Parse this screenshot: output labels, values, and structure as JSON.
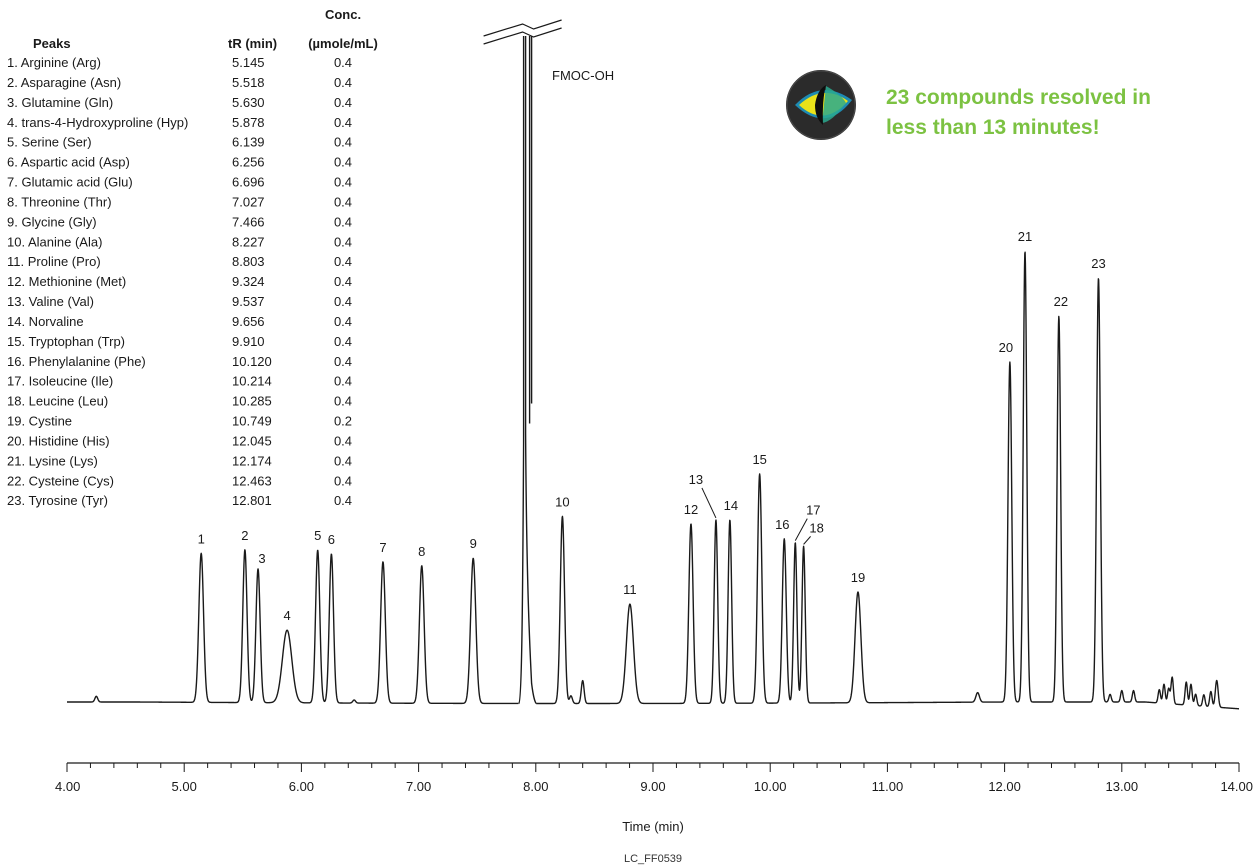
{
  "chart_data": {
    "type": "line",
    "xlabel": "Time (min)",
    "xlim": [
      4.0,
      14.0
    ],
    "x_ticks": [
      "4.00",
      "5.00",
      "6.00",
      "7.00",
      "8.00",
      "9.00",
      "10.00",
      "11.00",
      "12.00",
      "13.00",
      "14.00"
    ],
    "legend": {
      "headers": {
        "peaks": "Peaks",
        "tr": "tR (min)",
        "conc_line1": "Conc.",
        "conc_line2": "(µmole/mL)"
      },
      "rows": [
        {
          "label": "1. Arginine (Arg)",
          "tr": "5.145",
          "conc": "0.4"
        },
        {
          "label": "2. Asparagine (Asn)",
          "tr": "5.518",
          "conc": "0.4"
        },
        {
          "label": "3. Glutamine (Gln)",
          "tr": "5.630",
          "conc": "0.4"
        },
        {
          "label": "4. trans-4-Hydroxyproline (Hyp)",
          "tr": "5.878",
          "conc": "0.4"
        },
        {
          "label": "5. Serine (Ser)",
          "tr": "6.139",
          "conc": "0.4"
        },
        {
          "label": "6. Aspartic acid (Asp)",
          "tr": "6.256",
          "conc": "0.4"
        },
        {
          "label": "7. Glutamic acid (Glu)",
          "tr": "6.696",
          "conc": "0.4"
        },
        {
          "label": "8. Threonine (Thr)",
          "tr": "7.027",
          "conc": "0.4"
        },
        {
          "label": "9. Glycine (Gly)",
          "tr": "7.466",
          "conc": "0.4"
        },
        {
          "label": "10. Alanine (Ala)",
          "tr": "8.227",
          "conc": "0.4"
        },
        {
          "label": "11. Proline (Pro)",
          "tr": "8.803",
          "conc": "0.4"
        },
        {
          "label": "12. Methionine (Met)",
          "tr": "9.324",
          "conc": "0.4"
        },
        {
          "label": "13. Valine (Val)",
          "tr": "9.537",
          "conc": "0.4"
        },
        {
          "label": "14. Norvaline",
          "tr": "9.656",
          "conc": "0.4"
        },
        {
          "label": "15. Tryptophan (Trp)",
          "tr": "9.910",
          "conc": "0.4"
        },
        {
          "label": "16. Phenylalanine (Phe)",
          "tr": "10.120",
          "conc": "0.4"
        },
        {
          "label": "17. Isoleucine (Ile)",
          "tr": "10.214",
          "conc": "0.4"
        },
        {
          "label": "18. Leucine (Leu)",
          "tr": "10.285",
          "conc": "0.4"
        },
        {
          "label": "19. Cystine",
          "tr": "10.749",
          "conc": "0.2"
        },
        {
          "label": "20. Histidine (His)",
          "tr": "12.045",
          "conc": "0.4"
        },
        {
          "label": "21. Lysine (Lys)",
          "tr": "12.174",
          "conc": "0.4"
        },
        {
          "label": "22. Cysteine (Cys)",
          "tr": "12.463",
          "conc": "0.4"
        },
        {
          "label": "23. Tyrosine (Tyr)",
          "tr": "12.801",
          "conc": "0.4"
        }
      ]
    },
    "peaks": [
      {
        "label": "1",
        "t": 5.145,
        "h": 0.39,
        "w": 0.02
      },
      {
        "label": "2",
        "t": 5.518,
        "h": 0.4,
        "w": 0.018
      },
      {
        "label": "3",
        "t": 5.63,
        "h": 0.35,
        "w": 0.018
      },
      {
        "label": "4",
        "t": 5.878,
        "h": 0.19,
        "w": 0.04
      },
      {
        "label": "5",
        "t": 6.139,
        "h": 0.4,
        "w": 0.018
      },
      {
        "label": "6",
        "t": 6.256,
        "h": 0.39,
        "w": 0.018
      },
      {
        "label": "7",
        "t": 6.696,
        "h": 0.37,
        "w": 0.02
      },
      {
        "label": "8",
        "t": 7.027,
        "h": 0.36,
        "w": 0.02
      },
      {
        "label": "9",
        "t": 7.466,
        "h": 0.38,
        "w": 0.022
      },
      {
        "label": "10",
        "t": 8.227,
        "h": 0.49,
        "w": 0.018
      },
      {
        "label": "11",
        "t": 8.803,
        "h": 0.26,
        "w": 0.03
      },
      {
        "label": "12",
        "t": 9.324,
        "h": 0.47,
        "w": 0.018
      },
      {
        "label": "13",
        "t": 9.537,
        "h": 0.48,
        "w": 0.015
      },
      {
        "label": "14",
        "t": 9.656,
        "h": 0.48,
        "w": 0.015
      },
      {
        "label": "15",
        "t": 9.91,
        "h": 0.6,
        "w": 0.018
      },
      {
        "label": "16",
        "t": 10.12,
        "h": 0.43,
        "w": 0.017
      },
      {
        "label": "17",
        "t": 10.214,
        "h": 0.42,
        "w": 0.014
      },
      {
        "label": "18",
        "t": 10.285,
        "h": 0.41,
        "w": 0.014
      },
      {
        "label": "19",
        "t": 10.749,
        "h": 0.29,
        "w": 0.025
      },
      {
        "label": "20",
        "t": 12.045,
        "h": 0.89,
        "w": 0.016
      },
      {
        "label": "21",
        "t": 12.174,
        "h": 1.18,
        "w": 0.015
      },
      {
        "label": "22",
        "t": 12.463,
        "h": 1.01,
        "w": 0.015
      },
      {
        "label": "23",
        "t": 12.801,
        "h": 1.11,
        "w": 0.016
      }
    ],
    "minor_peaks": [
      {
        "t": 4.25,
        "h": 0.015,
        "w": 0.012
      },
      {
        "t": 6.45,
        "h": 0.008,
        "w": 0.012
      },
      {
        "t": 8.3,
        "h": 0.02,
        "w": 0.012
      },
      {
        "t": 8.4,
        "h": 0.06,
        "w": 0.012
      },
      {
        "t": 11.77,
        "h": 0.025,
        "w": 0.015
      },
      {
        "t": 12.9,
        "h": 0.02,
        "w": 0.01
      },
      {
        "t": 13.0,
        "h": 0.03,
        "w": 0.01
      },
      {
        "t": 13.1,
        "h": 0.03,
        "w": 0.01
      },
      {
        "t": 13.32,
        "h": 0.035,
        "w": 0.01
      },
      {
        "t": 13.36,
        "h": 0.05,
        "w": 0.01
      },
      {
        "t": 13.4,
        "h": 0.04,
        "w": 0.01
      },
      {
        "t": 13.43,
        "h": 0.07,
        "w": 0.01
      },
      {
        "t": 13.55,
        "h": 0.06,
        "w": 0.01
      },
      {
        "t": 13.59,
        "h": 0.055,
        "w": 0.01
      },
      {
        "t": 13.63,
        "h": 0.03,
        "w": 0.01
      },
      {
        "t": 13.7,
        "h": 0.03,
        "w": 0.01
      },
      {
        "t": 13.76,
        "h": 0.04,
        "w": 0.01
      },
      {
        "t": 13.81,
        "h": 0.07,
        "w": 0.012
      }
    ],
    "off_scale_peak": {
      "label": "FMOC-OH",
      "t": 7.93
    },
    "annotation": {
      "line1": "23 compounds resolved in",
      "line2": "less than 13 minutes!"
    },
    "figure_code": "LC_FF0539",
    "colors": {
      "trace": "#1a1a1a",
      "callout": "#7cc242"
    }
  }
}
